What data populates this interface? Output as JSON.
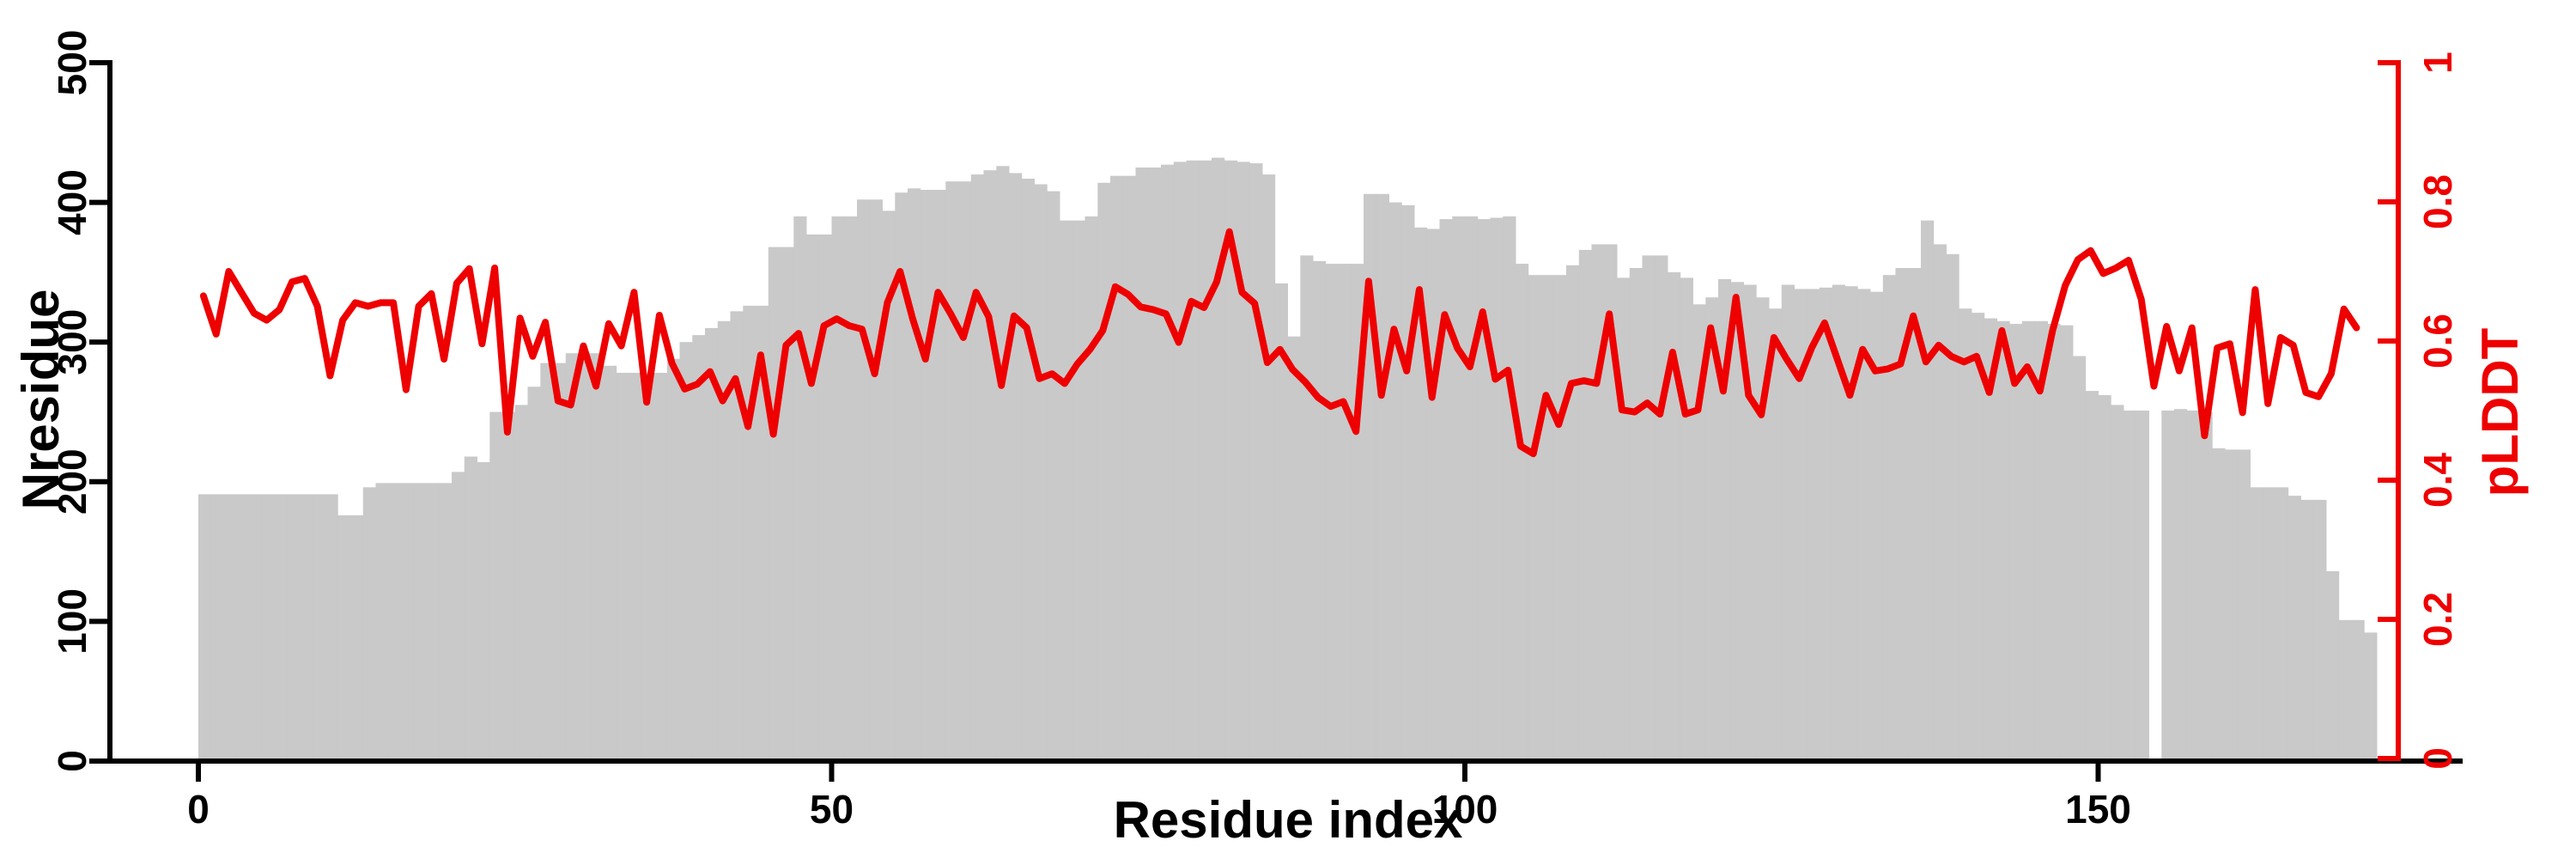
{
  "figure": {
    "background": "#ffffff",
    "axis_color": "#000000"
  },
  "chart_data": {
    "type": "bar+line",
    "title": "",
    "xlabel": "Residue index",
    "ylabel_left": "Nresidue",
    "ylabel_right": "pLDDT",
    "x_axis": {
      "tick_values": [
        0,
        50,
        100,
        150
      ],
      "tick_labels": [
        "0",
        "50",
        "100",
        "150"
      ],
      "range": [
        0,
        172
      ]
    },
    "y_left_axis": {
      "tick_values": [
        0,
        100,
        200,
        300,
        400,
        500
      ],
      "tick_labels": [
        "0",
        "100",
        "200",
        "300",
        "400",
        "500"
      ],
      "range": [
        0,
        500
      ],
      "color": "#000000"
    },
    "y_right_axis": {
      "tick_values": [
        0,
        0.2,
        0.4,
        0.6,
        0.8,
        1
      ],
      "tick_labels": [
        "0",
        "0.2",
        "0.4",
        "0.6",
        "0.8",
        "1"
      ],
      "range": [
        0,
        1
      ],
      "color": "#ee0000"
    },
    "grid": false,
    "legend_position": "none",
    "bar_series": {
      "name": "Nresidue",
      "color": "#c9c9c9",
      "start_index": 0,
      "values": [
        191,
        191,
        191,
        191,
        191,
        191,
        191,
        191,
        191,
        191,
        191,
        176,
        176,
        196,
        199,
        199,
        199,
        199,
        199,
        199,
        207,
        218,
        214,
        250,
        250,
        255,
        268,
        285,
        285,
        292,
        292,
        292,
        283,
        278,
        278,
        278,
        278,
        288,
        300,
        305,
        310,
        315,
        322,
        326,
        326,
        368,
        368,
        390,
        377,
        377,
        390,
        390,
        402,
        402,
        394,
        407,
        410,
        409,
        409,
        415,
        415,
        420,
        423,
        426,
        421,
        417,
        413,
        408,
        387,
        387,
        390,
        414,
        419,
        419,
        425,
        425,
        427,
        429,
        430,
        430,
        432,
        430,
        429,
        428,
        420,
        342,
        304,
        362,
        358,
        356,
        356,
        356,
        406,
        406,
        400,
        398,
        382,
        381,
        388,
        390,
        390,
        388,
        389,
        390,
        356,
        348,
        348,
        348,
        355,
        366,
        370,
        370,
        346,
        353,
        362,
        362,
        350,
        346,
        327,
        332,
        345,
        343,
        341,
        332,
        324,
        341,
        338,
        338,
        339,
        341,
        340,
        338,
        336,
        348,
        353,
        353,
        387,
        370,
        363,
        324,
        321,
        317,
        315,
        313,
        315,
        315,
        313,
        312,
        290,
        265,
        262,
        255,
        251,
        251,
        0,
        251,
        252,
        251,
        250,
        224,
        223,
        223,
        196,
        196,
        196,
        190,
        187,
        187,
        136,
        101,
        101,
        92
      ]
    },
    "line_series": {
      "name": "pLDDT",
      "color": "#ee0000",
      "start_index": 1,
      "values": [
        0.665,
        0.61,
        0.7,
        0.67,
        0.64,
        0.63,
        0.645,
        0.685,
        0.69,
        0.65,
        0.55,
        0.63,
        0.655,
        0.65,
        0.655,
        0.655,
        0.53,
        0.65,
        0.668,
        0.574,
        0.683,
        0.704,
        0.596,
        0.705,
        0.469,
        0.633,
        0.578,
        0.627,
        0.514,
        0.508,
        0.593,
        0.535,
        0.625,
        0.593,
        0.67,
        0.512,
        0.637,
        0.568,
        0.531,
        0.538,
        0.556,
        0.514,
        0.546,
        0.477,
        0.58,
        0.466,
        0.594,
        0.611,
        0.539,
        0.622,
        0.632,
        0.622,
        0.617,
        0.553,
        0.655,
        0.7,
        0.632,
        0.574,
        0.67,
        0.639,
        0.605,
        0.67,
        0.635,
        0.536,
        0.636,
        0.619,
        0.546,
        0.553,
        0.539,
        0.567,
        0.588,
        0.615,
        0.678,
        0.667,
        0.649,
        0.645,
        0.639,
        0.598,
        0.657,
        0.648,
        0.685,
        0.757,
        0.67,
        0.654,
        0.569,
        0.588,
        0.559,
        0.541,
        0.519,
        0.506,
        0.513,
        0.47,
        0.686,
        0.522,
        0.617,
        0.557,
        0.674,
        0.519,
        0.638,
        0.59,
        0.563,
        0.642,
        0.545,
        0.558,
        0.449,
        0.438,
        0.522,
        0.48,
        0.539,
        0.543,
        0.539,
        0.639,
        0.501,
        0.498,
        0.511,
        0.495,
        0.584,
        0.495,
        0.501,
        0.619,
        0.528,
        0.663,
        0.522,
        0.494,
        0.605,
        0.574,
        0.546,
        0.591,
        0.626,
        0.574,
        0.522,
        0.588,
        0.557,
        0.56,
        0.567,
        0.636,
        0.57,
        0.594,
        0.578,
        0.57,
        0.578,
        0.526,
        0.615,
        0.539,
        0.563,
        0.528,
        0.615,
        0.68,
        0.717,
        0.73,
        0.697,
        0.705,
        0.716,
        0.66,
        0.535,
        0.621,
        0.557,
        0.619,
        0.464,
        0.59,
        0.596,
        0.497,
        0.674,
        0.51,
        0.605,
        0.594,
        0.526,
        0.52,
        0.553,
        0.646,
        0.619
      ]
    }
  }
}
